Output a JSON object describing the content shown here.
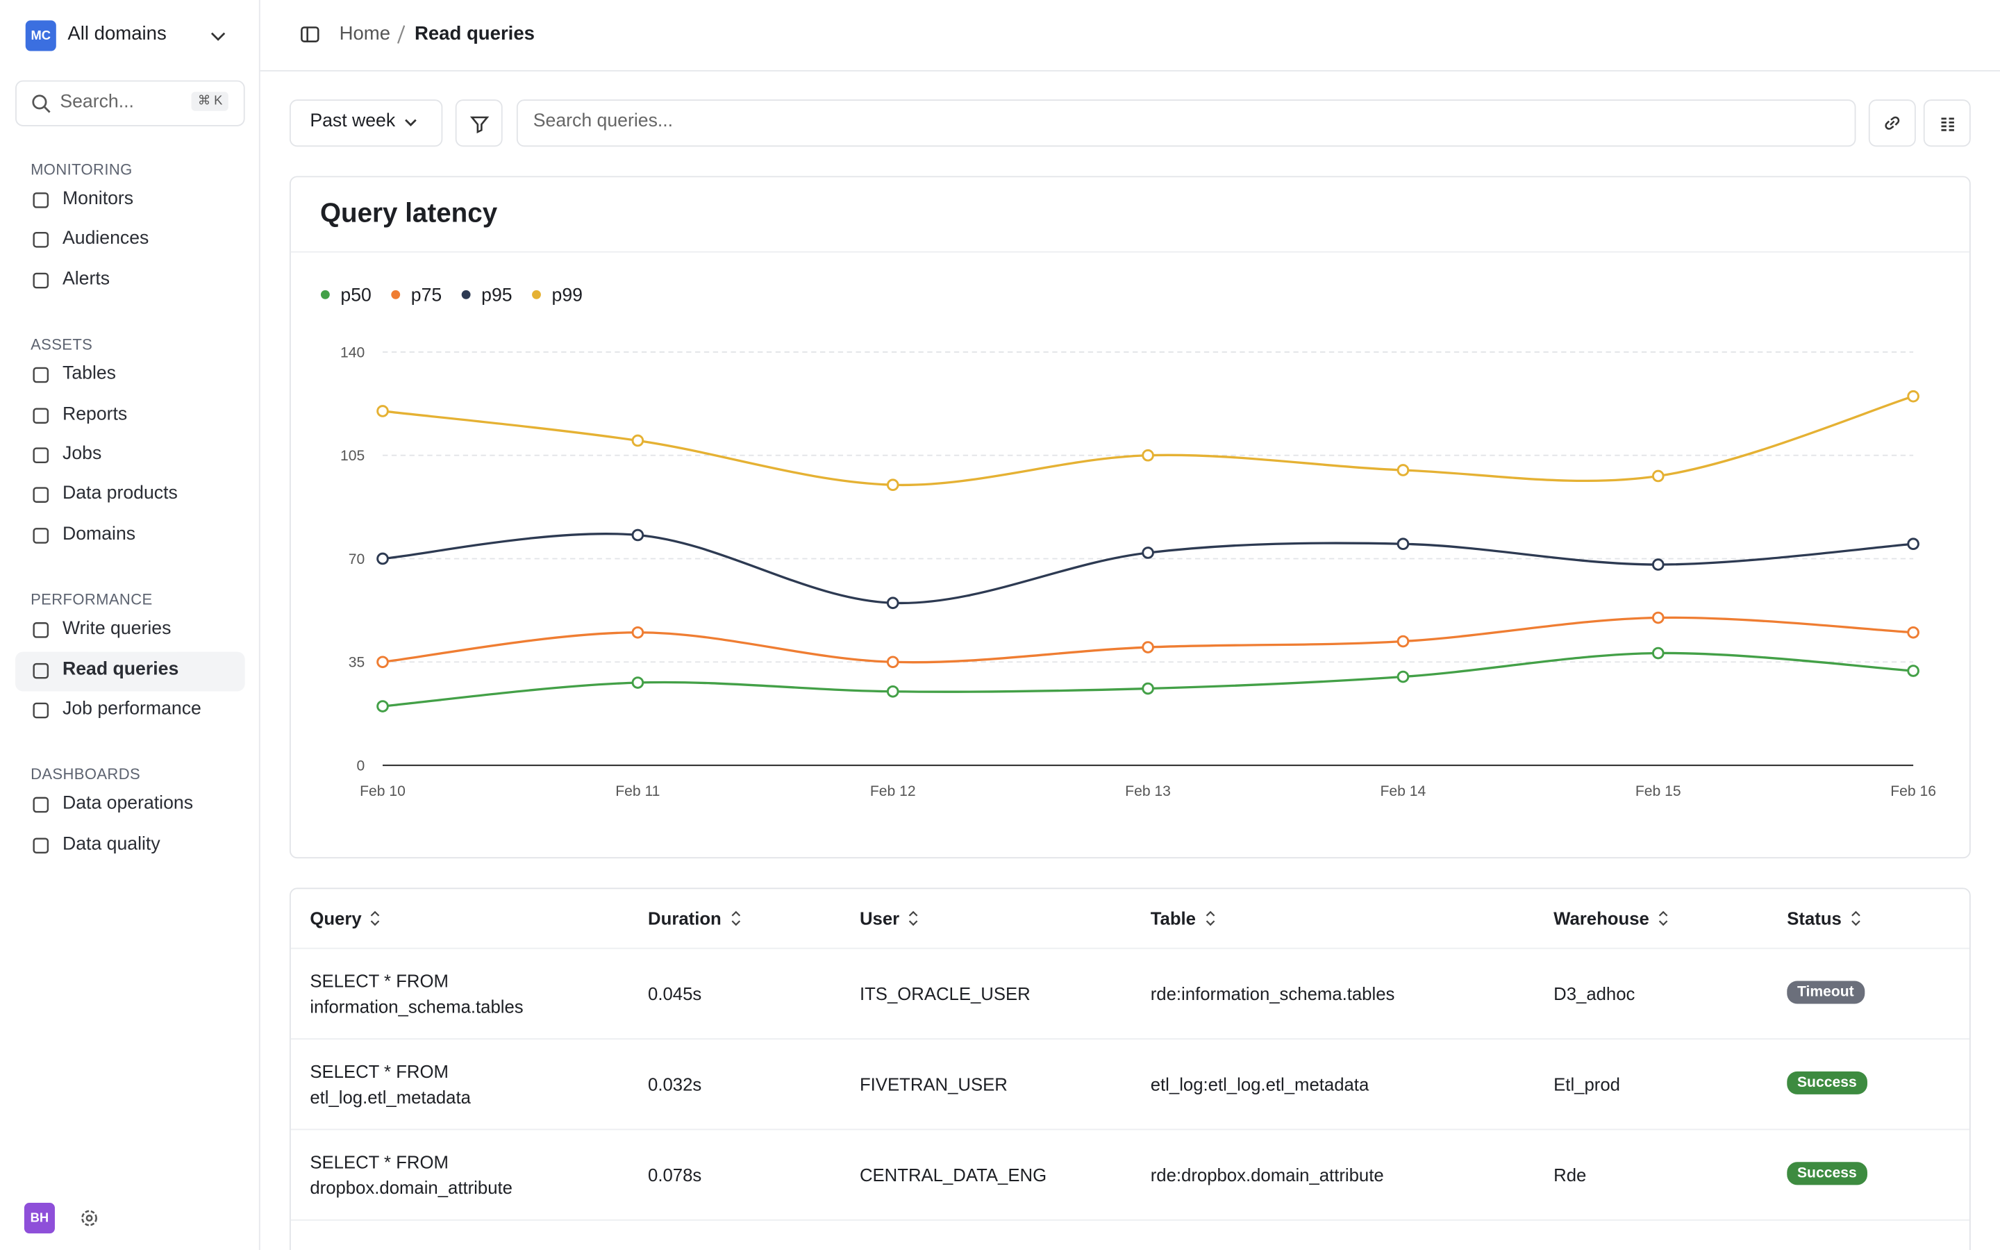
{
  "sidebar": {
    "workspace_badge": "MC",
    "workspace": "All domains",
    "search": "Search...",
    "search_shortcut": "⌘ K",
    "sections": [
      {
        "title": "MONITORING",
        "items": [
          "Monitors",
          "Audiences",
          "Alerts"
        ]
      },
      {
        "title": "ASSETS",
        "items": [
          "Tables",
          "Reports",
          "Jobs",
          "Data products",
          "Domains"
        ]
      },
      {
        "title": "PERFORMANCE",
        "items": [
          "Write queries",
          "Read queries",
          "Job performance"
        ]
      },
      {
        "title": "DASHBOARDS",
        "items": [
          "Data operations",
          "Data quality"
        ]
      }
    ],
    "user_badge": "BH"
  },
  "breadcrumb": [
    "Home",
    "Read queries"
  ],
  "toolbar": {
    "period": "Past week",
    "search_placeholder": "Search queries..."
  },
  "chart_data": {
    "type": "line",
    "title": "Query latency",
    "categories": [
      "Feb 10",
      "Feb 11",
      "Feb 12",
      "Feb 13",
      "Feb 14",
      "Feb 15",
      "Feb 16"
    ],
    "series": [
      {
        "name": "p50",
        "color": "#43a047",
        "values": [
          20,
          28,
          25,
          26,
          30,
          38,
          32
        ]
      },
      {
        "name": "p75",
        "color": "#ef7d32",
        "values": [
          35,
          45,
          35,
          40,
          42,
          50,
          45
        ]
      },
      {
        "name": "p95",
        "color": "#2d3a52",
        "values": [
          70,
          78,
          55,
          72,
          75,
          68,
          75
        ]
      },
      {
        "name": "p99",
        "color": "#e5b133",
        "values": [
          120,
          110,
          95,
          105,
          100,
          98,
          125
        ]
      }
    ],
    "ylim": [
      0,
      140
    ],
    "yticks": [
      0,
      35,
      70,
      105,
      140
    ],
    "grid": true
  },
  "table": {
    "columns": [
      "Query",
      "Duration",
      "User",
      "Table",
      "Warehouse",
      "Status"
    ],
    "rows": [
      [
        [
          "SELECT * FROM",
          "information_schema.tables"
        ],
        "0.045s",
        "ITS_ORACLE_USER",
        "rde:information_schema.tables",
        "D3_adhoc",
        "Timeout"
      ],
      [
        [
          "SELECT * FROM",
          "etl_log.etl_metadata"
        ],
        "0.032s",
        "FIVETRAN_USER",
        "etl_log:etl_log.etl_metadata",
        "Etl_prod",
        "Success"
      ],
      [
        [
          "SELECT * FROM",
          "dropbox.domain_attribute"
        ],
        "0.078s",
        "CENTRAL_DATA_ENG",
        "rde:dropbox.domain_attribute",
        "Rde",
        "Success"
      ]
    ],
    "status_colors": {
      "Timeout": "#6b6f7b",
      "Success": "#3d8b40"
    }
  }
}
